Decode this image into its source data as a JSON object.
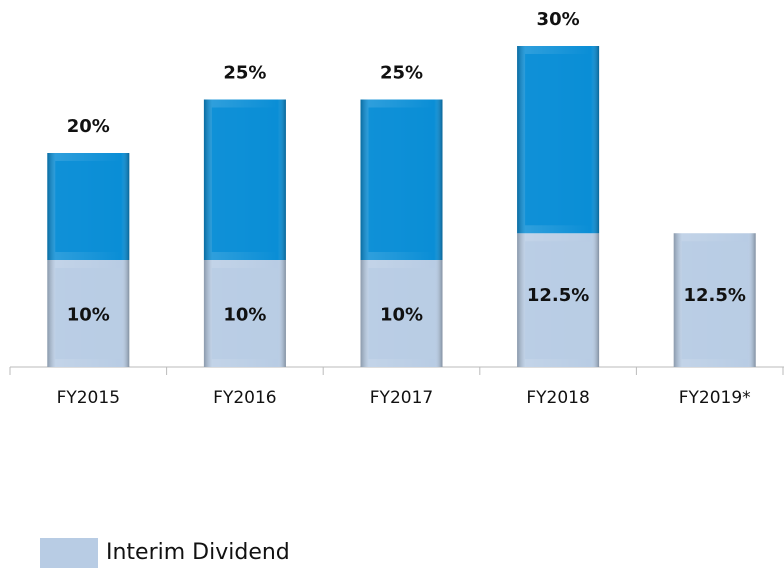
{
  "chart_data": {
    "type": "stacked_bar",
    "categories": [
      "FY2015",
      "FY2016",
      "FY2017",
      "FY2018",
      "FY2019*"
    ],
    "series": [
      {
        "name": "Interim Dividend",
        "color": "#b8cce4",
        "values": [
          10,
          10,
          10,
          12.5,
          12.5
        ],
        "value_labels": [
          "10%",
          "10%",
          "10%",
          "12.5%",
          "12.5%"
        ]
      },
      {
        "color": "#0a8ed6",
        "values": [
          10,
          15,
          15,
          17.5,
          null
        ]
      }
    ],
    "totals": [
      20,
      25,
      25,
      30,
      null
    ],
    "total_labels": [
      "20%",
      "25%",
      "25%",
      "30%",
      null
    ],
    "ylim": [
      0,
      30
    ]
  }
}
